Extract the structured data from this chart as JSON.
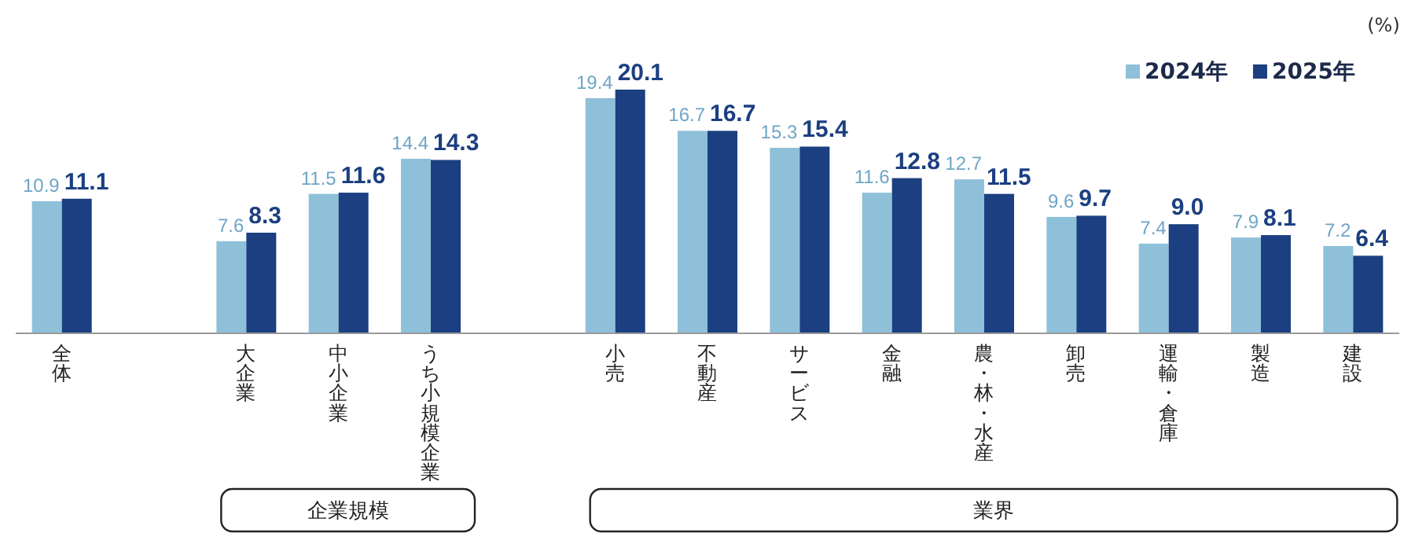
{
  "chart_data": {
    "type": "bar",
    "ylabel": "(%)",
    "categories": [
      "全体",
      null,
      "大企業",
      "中小企業",
      "うち小規模企業",
      null,
      "小売",
      "不動産",
      "サービス",
      "金融",
      "農・林・水産",
      "卸売",
      "運輸・倉庫",
      "製造",
      "建設"
    ],
    "series": [
      {
        "name": "2024年",
        "color": "#8fc0d9",
        "values": [
          10.9,
          null,
          7.6,
          11.5,
          14.4,
          null,
          19.4,
          16.7,
          15.3,
          11.6,
          12.7,
          9.6,
          7.4,
          7.9,
          7.2
        ],
        "value_labels": [
          "10.9",
          null,
          "7.6",
          "11.5",
          "14.4",
          null,
          "19.4",
          "16.7",
          "15.3",
          "11.6",
          "12.7",
          "9.6",
          "7.4",
          "7.9",
          "7.2"
        ]
      },
      {
        "name": "2025年",
        "color": "#1b3f80",
        "values": [
          11.1,
          null,
          8.3,
          11.6,
          14.3,
          null,
          20.1,
          16.7,
          15.4,
          12.8,
          11.5,
          9.7,
          9.0,
          8.1,
          6.4
        ],
        "value_labels": [
          "11.1",
          null,
          "8.3",
          "11.6",
          "14.3",
          null,
          "20.1",
          "16.7",
          "15.4",
          "12.8",
          "11.5",
          "9.7",
          "9.0",
          "8.1",
          "6.4"
        ]
      }
    ],
    "legend": "top right",
    "annotations": [
      "企業規模",
      "業界"
    ]
  }
}
